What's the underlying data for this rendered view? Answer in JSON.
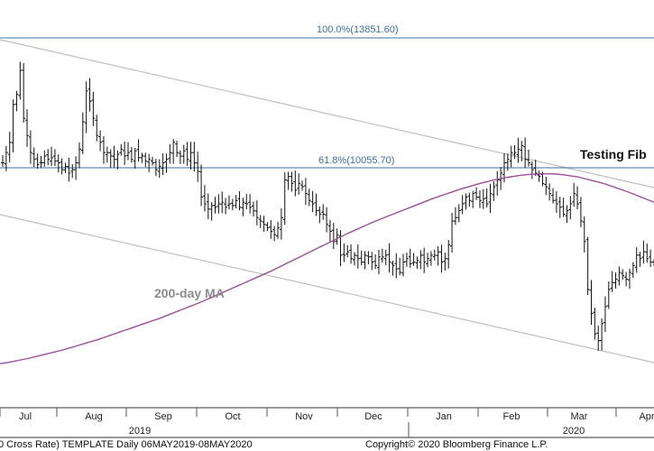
{
  "chart_data": {
    "type": "ohlc",
    "series": [
      {
        "values": [
          10200,
          10500,
          10800,
          11900,
          12200,
          12900,
          11500,
          11000,
          10500,
          10300,
          10150,
          10200,
          10400,
          10300,
          10350,
          10250,
          10200,
          10000,
          10100,
          9900,
          10000,
          10200,
          10600,
          11400,
          12300,
          12000,
          11500,
          11000,
          10800,
          10500,
          10500,
          10400,
          10300,
          10450,
          10600,
          10400,
          10500,
          10300,
          10550,
          10350,
          10400,
          10250,
          10300,
          10200,
          10000,
          10100,
          10200,
          10300,
          10500,
          10800,
          10500,
          10400,
          10550,
          10300,
          10500,
          10200,
          9950,
          9200,
          9000,
          8850,
          8950,
          8900,
          9000,
          9050,
          8900,
          9000,
          8950,
          9100,
          8900,
          9050,
          9000,
          8900,
          8800,
          8600,
          8500,
          8400,
          8300,
          8200,
          8100,
          8300,
          8600,
          9700,
          9800,
          9600,
          9400,
          9600,
          9500,
          9300,
          9100,
          9000,
          8800,
          8700,
          8700,
          8400,
          8200,
          7900,
          8100,
          7500,
          7500,
          7600,
          7400,
          7500,
          7400,
          7300,
          7500,
          7450,
          7300,
          7200,
          7450,
          7450,
          7500,
          7300,
          7200,
          7100,
          7000,
          7300,
          7400,
          7250,
          7300,
          7350,
          7500,
          7300,
          7400,
          7500,
          7500,
          7600,
          7300,
          7400,
          7800,
          8500,
          8600,
          8800,
          9000,
          9200,
          9100,
          9300,
          9200,
          9100,
          9150,
          9000,
          9300,
          9500,
          9700,
          9900,
          10200,
          10300,
          10500,
          10500,
          10600,
          10700,
          10300,
          10200,
          10000,
          9900,
          9800,
          9600,
          9500,
          9300,
          9100,
          9000,
          8900,
          8700,
          8800,
          9000,
          9300,
          9000,
          8500,
          7900,
          6500,
          5800,
          5200,
          5000,
          5500,
          6000,
          6500,
          6700,
          6800,
          7000,
          6900,
          6800,
          7000,
          7200,
          7500,
          7400,
          7600,
          7400,
          7300,
          7300
        ]
      }
    ],
    "moving_average": {
      "label": "200-day MA",
      "values": [
        4330,
        4360,
        4400,
        4440,
        4480,
        4530,
        4580,
        4630,
        4680,
        4730,
        4790,
        4850,
        4910,
        4970,
        5030,
        5100,
        5170,
        5240,
        5310,
        5380,
        5450,
        5520,
        5590,
        5660,
        5740,
        5820,
        5900,
        5980,
        6060,
        6140,
        6230,
        6320,
        6410,
        6500,
        6590,
        6680,
        6770,
        6860,
        6950,
        7040,
        7140,
        7240,
        7340,
        7440,
        7540,
        7640,
        7740,
        7840,
        7940,
        8040,
        8140,
        8230,
        8320,
        8410,
        8500,
        8580,
        8660,
        8740,
        8820,
        8900,
        8980,
        9060,
        9140,
        9210,
        9280,
        9350,
        9420,
        9480,
        9540,
        9600,
        9650,
        9700,
        9740,
        9780,
        9810,
        9840,
        9860,
        9870,
        9880,
        9880,
        9870,
        9850,
        9820,
        9790,
        9740,
        9690,
        9640,
        9580,
        9510,
        9440,
        9370,
        9290,
        9210,
        9130,
        9050
      ]
    },
    "horizontal_levels": [
      {
        "label": "100.0%(13851.60)",
        "value": 13851.6
      },
      {
        "label": "61.8%(10055.70)",
        "value": 10055.7
      }
    ],
    "annotations": [
      "Testing Fib",
      "200-day MA"
    ],
    "x_month_labels": [
      "Jul",
      "Aug",
      "Sep",
      "Oct",
      "Nov",
      "Dec",
      "Jan",
      "Feb",
      "Mar",
      "Apr"
    ],
    "x_year_labels": [
      "2019",
      "2020"
    ],
    "ylim": [
      3000,
      14200
    ],
    "grid": false,
    "footer_left": "0 Cross Rate) TEMPLATE  Daily 06MAY2019-08MAY2020",
    "footer_right": "Copyright© 2020 Bloomberg Finance L.P."
  }
}
